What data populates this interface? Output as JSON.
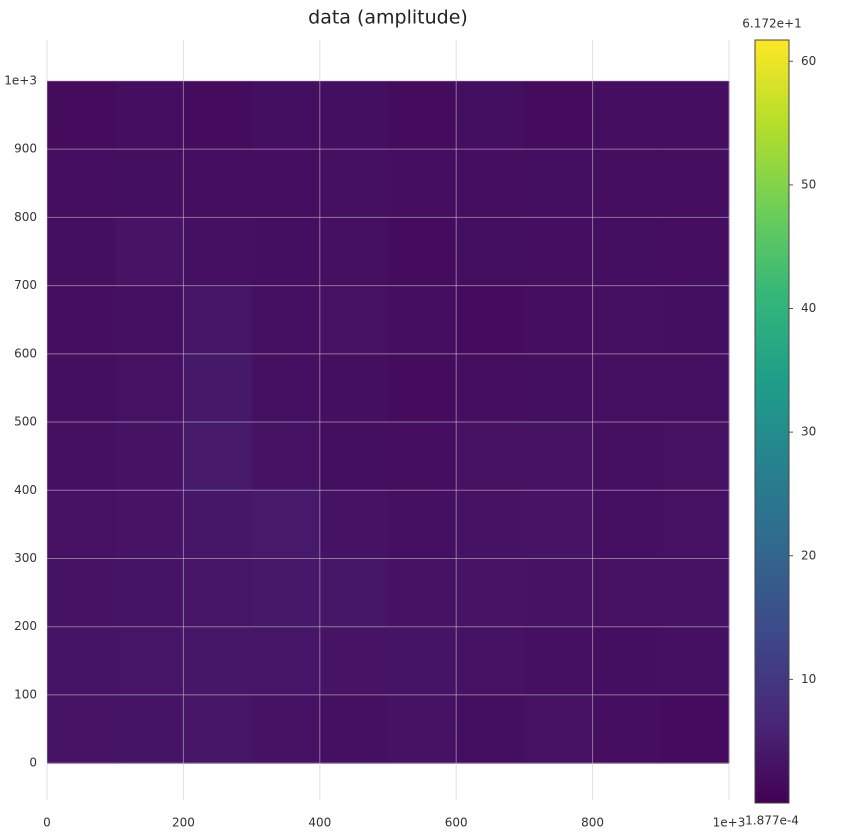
{
  "chart_data": {
    "type": "heatmap",
    "title": "data (amplitude)",
    "colorscale": "viridis",
    "x": [
      50,
      150,
      250,
      350,
      450,
      550,
      650,
      750,
      850,
      950
    ],
    "y": [
      50,
      150,
      250,
      350,
      450,
      550,
      650,
      750,
      850,
      950
    ],
    "z": [
      [
        3.2,
        3.4,
        3.6,
        3.0,
        2.6,
        3.0,
        2.4,
        2.8,
        2.2,
        2.0
      ],
      [
        3.4,
        3.6,
        3.8,
        3.6,
        3.2,
        3.4,
        3.0,
        2.6,
        2.4,
        2.6
      ],
      [
        3.0,
        3.4,
        3.6,
        4.0,
        3.8,
        3.0,
        3.2,
        3.0,
        2.8,
        3.0
      ],
      [
        2.8,
        3.2,
        3.8,
        4.2,
        3.0,
        2.6,
        3.0,
        3.2,
        2.6,
        2.8
      ],
      [
        2.6,
        3.0,
        4.2,
        3.0,
        2.4,
        2.2,
        2.8,
        3.0,
        2.6,
        2.8
      ],
      [
        2.4,
        2.8,
        4.0,
        2.6,
        2.4,
        2.0,
        2.2,
        2.4,
        2.6,
        2.6
      ],
      [
        2.2,
        2.6,
        3.6,
        2.6,
        2.8,
        2.2,
        2.0,
        2.2,
        2.6,
        2.4
      ],
      [
        2.4,
        3.2,
        2.6,
        2.4,
        2.6,
        2.0,
        2.4,
        2.2,
        2.4,
        2.2
      ],
      [
        2.2,
        2.4,
        2.2,
        2.2,
        2.6,
        2.2,
        2.2,
        2.4,
        2.2,
        2.2
      ],
      [
        2.0,
        2.2,
        2.0,
        2.4,
        2.4,
        2.0,
        2.4,
        2.0,
        2.2,
        2.2
      ]
    ],
    "xlim": [
      0,
      1000
    ],
    "ylim": [
      -54,
      1060
    ],
    "xticks": [
      0,
      200,
      400,
      600,
      800,
      {
        "value": 1000,
        "label": "1e+3"
      }
    ],
    "yticks": [
      0,
      100,
      200,
      300,
      400,
      500,
      600,
      700,
      800,
      900,
      {
        "value": 1000,
        "label": "1e+3"
      }
    ],
    "clim": [
      0.0001877,
      61.72
    ],
    "cticks": [
      10,
      20,
      30,
      40,
      50,
      60
    ],
    "clim_labels": [
      {
        "value": 0.0001877,
        "label": "1.877e-4"
      },
      {
        "value": 61.72,
        "label": "6.172e+1"
      }
    ],
    "grid": true
  }
}
